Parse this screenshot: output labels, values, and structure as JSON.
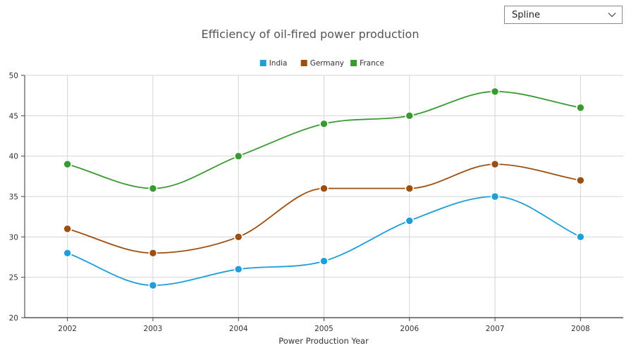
{
  "dropdown": {
    "selected": "Spline",
    "icon": "chevron-down-icon"
  },
  "chart_data": {
    "type": "line",
    "interpolation": "spline",
    "title": "Efficiency of oil-fired power production",
    "xlabel": "Power Production Year",
    "ylabel": "",
    "categories": [
      "2002",
      "2003",
      "2004",
      "2005",
      "2006",
      "2007",
      "2008"
    ],
    "ylim": [
      20,
      50
    ],
    "yticks": [
      20,
      25,
      30,
      35,
      40,
      45,
      50
    ],
    "grid": true,
    "legend_position": "top",
    "series": [
      {
        "name": "India",
        "color": "#1f9ed8",
        "values": [
          28,
          24,
          26,
          27,
          32,
          35,
          30
        ]
      },
      {
        "name": "Germany",
        "color": "#9c4f10",
        "values": [
          31,
          28,
          30,
          36,
          36,
          39,
          37
        ]
      },
      {
        "name": "France",
        "color": "#3a9a32",
        "values": [
          39,
          36,
          40,
          44,
          45,
          48,
          46
        ]
      }
    ]
  }
}
